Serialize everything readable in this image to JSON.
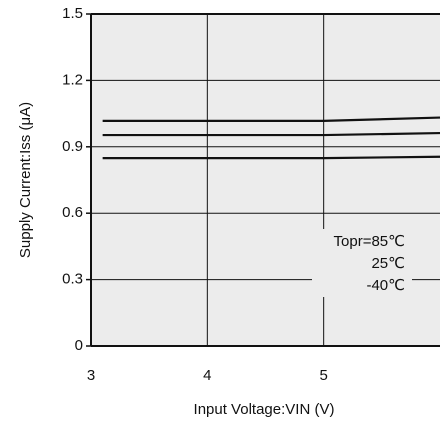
{
  "chart_data": {
    "type": "line",
    "x_label": "Input Voltage:VIN (V)",
    "y_label": "Supply Current:Iss (μA)",
    "x": [
      3.1,
      4,
      5,
      6
    ],
    "series": [
      {
        "name": "Topr=85℃",
        "color": "#111111",
        "values": [
          1.017,
          1.017,
          1.017,
          1.032
        ]
      },
      {
        "name": "25℃",
        "color": "#111111",
        "values": [
          0.953,
          0.953,
          0.953,
          0.962
        ]
      },
      {
        "name": "-40℃",
        "color": "#111111",
        "values": [
          0.849,
          0.849,
          0.849,
          0.855
        ]
      }
    ],
    "xlim": [
      3,
      6
    ],
    "xticks": [
      3,
      4,
      5
    ],
    "ylim": [
      0,
      1.5
    ],
    "yticks": [
      0,
      0.3,
      0.6,
      0.9,
      1.2,
      1.5
    ],
    "grid": true
  }
}
